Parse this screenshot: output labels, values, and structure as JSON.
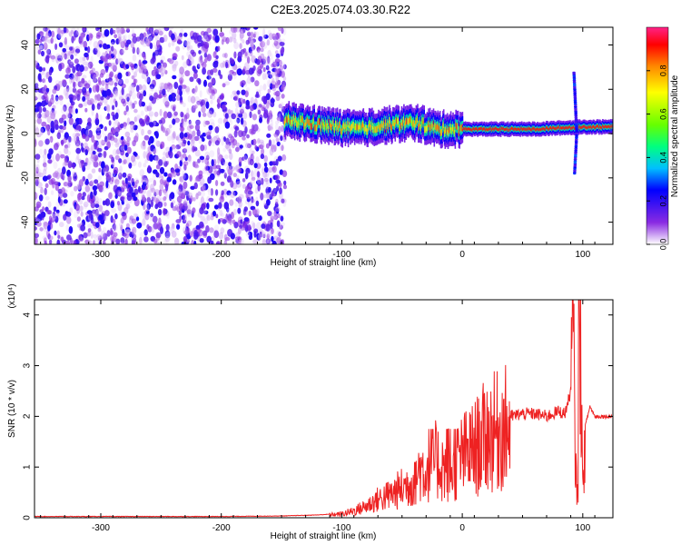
{
  "figure_title": "C2E3.2025.074.03.30.R22",
  "colors": {
    "snr_line": "#ee2222",
    "plot_background": "#ffffff",
    "axis": "#000000"
  },
  "chart_data": [
    {
      "type": "heatmap",
      "title": "C2E3.2025.074.03.30.R22",
      "xlabel": "Height of straight line (km)",
      "ylabel": "Frequency (Hz)",
      "xlim": [
        -355,
        125
      ],
      "ylim": [
        -50,
        48
      ],
      "x_ticks": [
        -300,
        -200,
        -100,
        0,
        100
      ],
      "y_ticks": [
        -40,
        -20,
        0,
        20,
        40
      ],
      "colorscale": "rainbow",
      "colorbar": {
        "label": "Normalized spectral amplitude",
        "range": [
          0,
          1
        ],
        "ticks": [
          "0.0",
          "0.2",
          "0.4",
          "0.6",
          "0.8"
        ]
      },
      "grid": false,
      "regions": [
        {
          "kind": "noise",
          "x_range": [
            -355,
            -147
          ],
          "freq_range": [
            -50,
            48
          ],
          "amplitude_max": 0.2
        },
        {
          "kind": "ridge",
          "x_range": [
            -148,
            125
          ],
          "center_freq": [
            [
              -148,
              6
            ],
            [
              -120,
              4
            ],
            [
              -90,
              2
            ],
            [
              -60,
              4
            ],
            [
              -40,
              5
            ],
            [
              -20,
              2
            ],
            [
              0,
              2
            ],
            [
              30,
              2
            ],
            [
              60,
              2
            ],
            [
              100,
              3
            ],
            [
              125,
              3
            ]
          ],
          "amplitude_max": 0.95
        },
        {
          "kind": "spike",
          "x": 95,
          "freq_range": [
            -18,
            28
          ],
          "amplitude_max": 0.3
        }
      ]
    },
    {
      "type": "line",
      "xlabel": "Height of straight line (km)",
      "ylabel": "SNR (10 * v/v)",
      "y_scale_label": "(x10⁴)",
      "xlim": [
        -355,
        125
      ],
      "ylim": [
        0,
        4.3
      ],
      "x_ticks": [
        -300,
        -200,
        -100,
        0,
        100
      ],
      "y_ticks": [
        0,
        1,
        2,
        3,
        4
      ],
      "grid": false,
      "series": [
        {
          "color": "#ee2222",
          "x": [
            -355,
            -300,
            -200,
            -150,
            -120,
            -100,
            -90,
            -80,
            -70,
            -60,
            -50,
            -40,
            -35,
            -30,
            -25,
            -20,
            -15,
            -10,
            -5,
            0,
            10,
            20,
            30,
            40,
            50,
            60,
            70,
            80,
            85,
            88,
            90,
            92,
            94,
            96,
            98,
            100,
            102,
            104,
            106,
            110,
            115,
            120,
            125
          ],
          "values": [
            0.02,
            0.02,
            0.02,
            0.03,
            0.05,
            0.08,
            0.15,
            0.25,
            0.4,
            0.5,
            0.65,
            0.8,
            1.1,
            1.0,
            1.3,
            1.2,
            1.1,
            1.0,
            1.2,
            1.35,
            1.5,
            1.8,
            1.9,
            2.0,
            2.05,
            2.05,
            2.0,
            2.1,
            2.05,
            2.3,
            2.5,
            3.8,
            0.9,
            0.4,
            3.5,
            0.5,
            1.8,
            2.0,
            2.2,
            2.0,
            2.0,
            2.0,
            2.0
          ],
          "jitter_peaks": [
            {
              "x": -40,
              "max": 1.1
            },
            {
              "x": -30,
              "max": 1.75
            },
            {
              "x": -10,
              "max": 1.75
            },
            {
              "x": 97,
              "max": 4.3
            }
          ]
        }
      ]
    }
  ]
}
